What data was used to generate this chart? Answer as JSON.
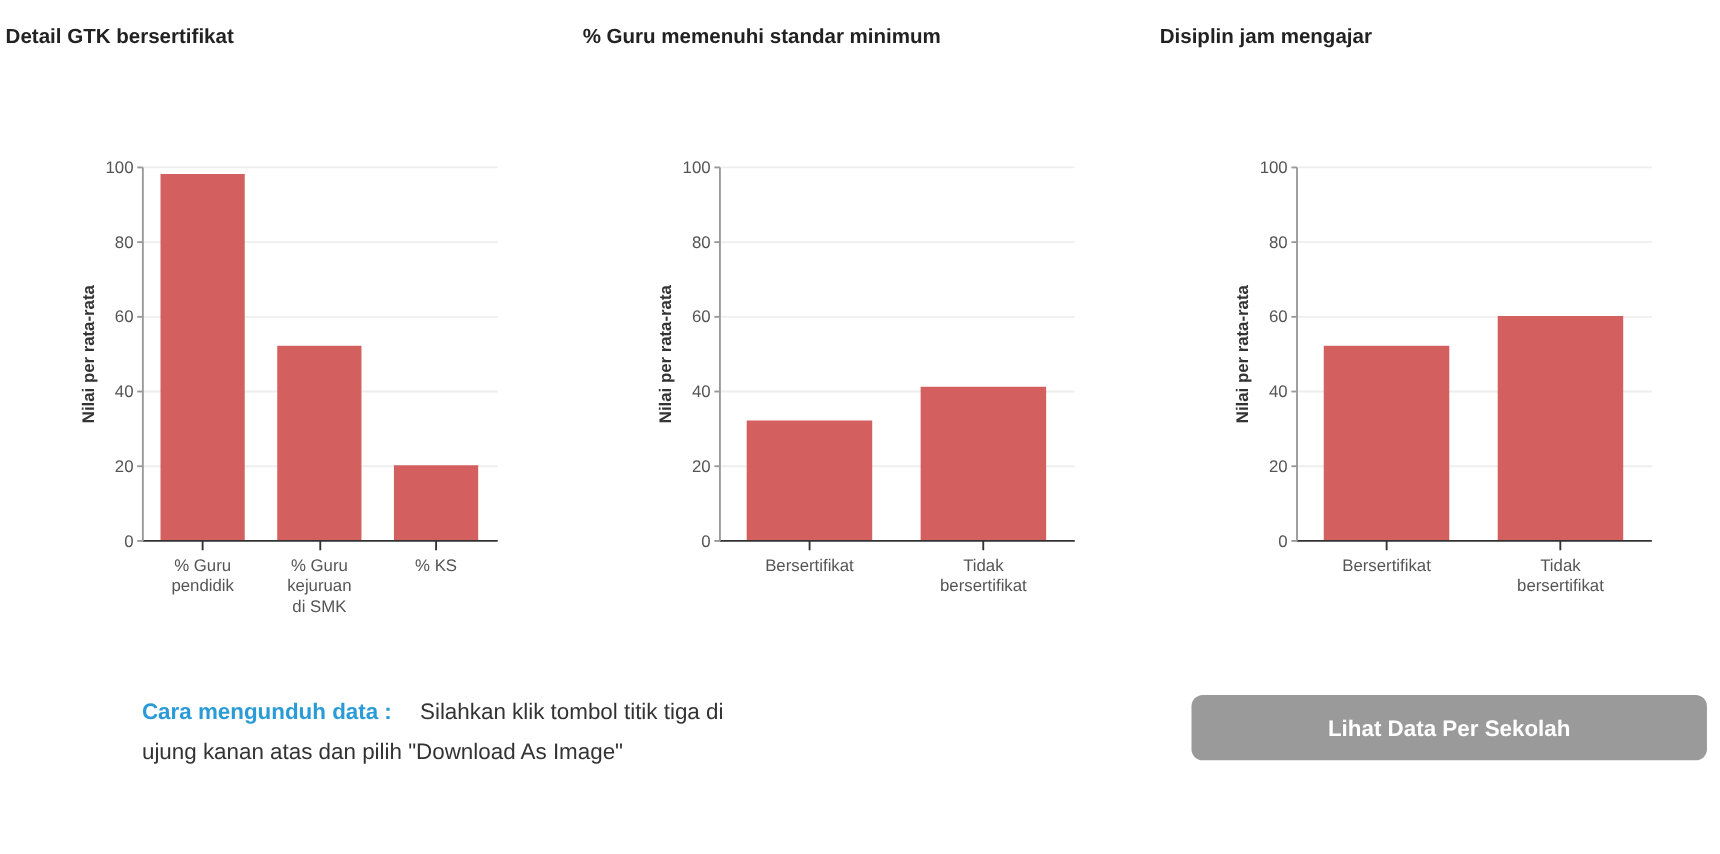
{
  "chart_data": [
    {
      "type": "bar",
      "title": "Detail GTK bersertifikat",
      "ylabel": "Nilai per rata-rata",
      "categories": [
        "% Guru pendidik",
        "% Guru kejuruan di SMK",
        "% KS"
      ],
      "values": [
        98,
        52,
        20
      ],
      "color": "#d45f5f",
      "ylim": [
        0,
        100
      ],
      "yticks": [
        0,
        20,
        40,
        60,
        80,
        100
      ],
      "grid": "y"
    },
    {
      "type": "bar",
      "title": "% Guru memenuhi standar minimum",
      "ylabel": "Nilai per rata-rata",
      "categories": [
        "Bersertifikat",
        "Tidak bersertifikat"
      ],
      "values": [
        32,
        41
      ],
      "color": "#d45f5f",
      "ylim": [
        0,
        100
      ],
      "yticks": [
        0,
        20,
        40,
        60,
        80,
        100
      ],
      "grid": "y"
    },
    {
      "type": "bar",
      "title": "Disiplin jam mengajar",
      "ylabel": "Nilai per rata-rata",
      "categories": [
        "Bersertifikat",
        "Tidak bersertifikat"
      ],
      "values": [
        52,
        60
      ],
      "color": "#d45f5f",
      "ylim": [
        0,
        100
      ],
      "yticks": [
        0,
        20,
        40,
        60,
        80,
        100
      ],
      "grid": "y"
    },
    {
      "type": "other",
      "annotations": [
        "Cara mengunduh data :",
        "Silahkan klik tombol titik tiga di ujung kanan atas dan pilih \"Download As Image\"",
        "Lihat Data Per Sekolah"
      ]
    }
  ]
}
